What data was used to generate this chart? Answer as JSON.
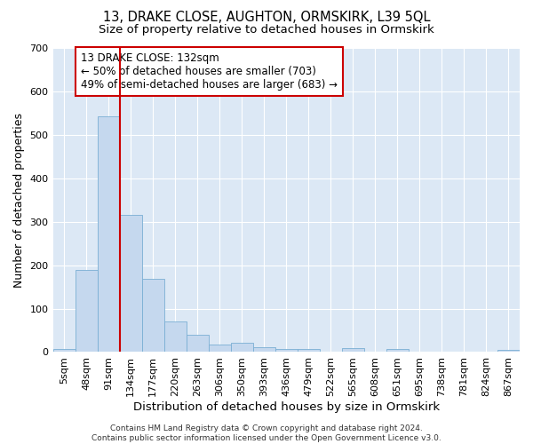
{
  "title": "13, DRAKE CLOSE, AUGHTON, ORMSKIRK, L39 5QL",
  "subtitle": "Size of property relative to detached houses in Ormskirk",
  "xlabel": "Distribution of detached houses by size in Ormskirk",
  "ylabel": "Number of detached properties",
  "bar_labels": [
    "5sqm",
    "48sqm",
    "91sqm",
    "134sqm",
    "177sqm",
    "220sqm",
    "263sqm",
    "306sqm",
    "350sqm",
    "393sqm",
    "436sqm",
    "479sqm",
    "522sqm",
    "565sqm",
    "608sqm",
    "651sqm",
    "695sqm",
    "738sqm",
    "781sqm",
    "824sqm",
    "867sqm"
  ],
  "bar_heights": [
    8,
    188,
    543,
    315,
    168,
    70,
    40,
    18,
    22,
    12,
    8,
    8,
    0,
    10,
    0,
    8,
    0,
    0,
    0,
    0,
    5
  ],
  "bar_color": "#c5d8ee",
  "bar_edge_color": "#7aafd4",
  "fig_bg_color": "#ffffff",
  "ax_bg_color": "#dce8f5",
  "grid_color": "#ffffff",
  "red_line_x": 3.0,
  "annotation_text": "13 DRAKE CLOSE: 132sqm\n← 50% of detached houses are smaller (703)\n49% of semi-detached houses are larger (683) →",
  "annotation_box_color": "#ffffff",
  "annotation_box_edge_color": "#cc0000",
  "ylim": [
    0,
    700
  ],
  "yticks": [
    0,
    100,
    200,
    300,
    400,
    500,
    600,
    700
  ],
  "footer_text": "Contains HM Land Registry data © Crown copyright and database right 2024.\nContains public sector information licensed under the Open Government Licence v3.0.",
  "title_fontsize": 10.5,
  "subtitle_fontsize": 9.5,
  "tick_fontsize": 8,
  "ylabel_fontsize": 9,
  "xlabel_fontsize": 9.5,
  "annotation_fontsize": 8.5,
  "footer_fontsize": 6.5
}
